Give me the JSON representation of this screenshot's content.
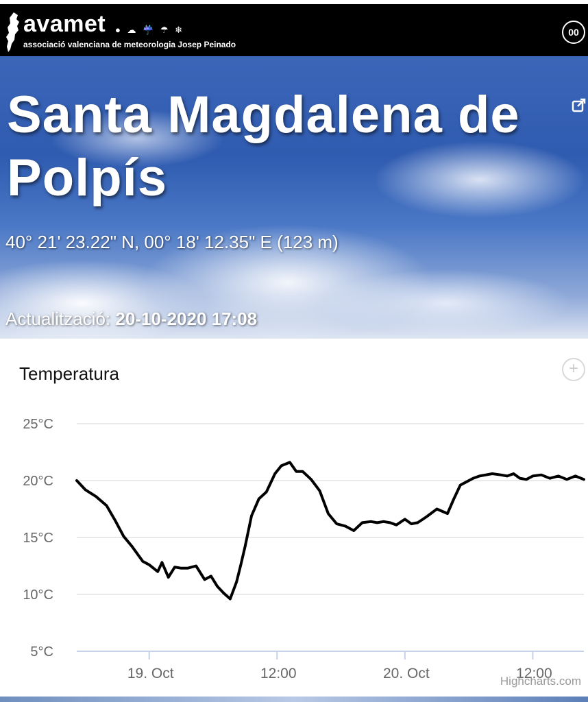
{
  "header": {
    "brand": "avamet",
    "tagline": "associació valenciana de meteorologia Josep Peinado",
    "weather_icons": "● ☁ ☔ ☂ ❄",
    "menu_label": "00"
  },
  "hero": {
    "title": "Santa Magdalena de Polpís",
    "coordinates": "40° 21' 23.22\" N, 00° 18' 12.35\" E (123 m)",
    "updated_label": "Actualització:",
    "updated_value": "20-10-2020 17:08"
  },
  "panel": {
    "title": "Temperatura",
    "zoom_label": "+",
    "credit": "Highcharts.com"
  },
  "chart_data": {
    "type": "line",
    "title": "Temperatura",
    "xlabel": "",
    "ylabel": "",
    "y_ticks": [
      "25°C",
      "20°C",
      "15°C",
      "10°C",
      "5°C"
    ],
    "y_tick_values": [
      25,
      20,
      15,
      10,
      5
    ],
    "x_ticks": [
      "19. Oct",
      "12:00",
      "20. Oct",
      "12:00"
    ],
    "x_tick_hours": [
      24,
      36,
      48,
      60
    ],
    "ylim": [
      5,
      25
    ],
    "xlim": [
      17.2,
      64.8
    ],
    "grid": true,
    "series": [
      {
        "color": "#000000",
        "x": [
          17.2,
          18,
          19,
          20,
          20.8,
          21.6,
          22.4,
          23.4,
          24,
          24.8,
          25.2,
          25.8,
          26.4,
          27,
          27.6,
          28.4,
          29.2,
          29.8,
          30.4,
          31,
          31.6,
          32.2,
          32.6,
          33,
          33.6,
          34.3,
          35,
          35.8,
          36.4,
          37.2,
          37.8,
          38.4,
          39.2,
          40,
          40.8,
          41.6,
          42.4,
          43.2,
          44,
          44.8,
          45.4,
          46,
          46.6,
          47.2,
          48,
          48.6,
          49.2,
          50,
          51,
          52,
          52.6,
          53.2,
          53.8,
          54.4,
          55,
          55.6,
          56.2,
          57,
          57.6,
          58.2,
          58.8,
          59.4,
          60,
          60.8,
          61.6,
          62.4,
          63.2,
          64,
          64.8
        ],
        "y": [
          20,
          19.2,
          18.6,
          17.8,
          16.5,
          15.1,
          14.2,
          12.9,
          12.6,
          12,
          12.8,
          11.5,
          12.4,
          12.3,
          12.3,
          12.5,
          11.3,
          11.6,
          10.7,
          10.1,
          9.6,
          11.1,
          12.6,
          14.2,
          16.9,
          18.4,
          19,
          20.6,
          21.3,
          21.6,
          20.8,
          20.8,
          20.1,
          19.1,
          17.1,
          16.2,
          16,
          15.6,
          16.3,
          16.4,
          16.3,
          16.4,
          16.3,
          16.1,
          16.6,
          16.2,
          16.3,
          16.8,
          17.5,
          17.1,
          18.4,
          19.6,
          19.9,
          20.2,
          20.4,
          20.5,
          20.6,
          20.5,
          20.4,
          20.6,
          20.2,
          20.1,
          20.4,
          20.5,
          20.2,
          20.4,
          20.1,
          20.4,
          20.1
        ]
      }
    ]
  }
}
